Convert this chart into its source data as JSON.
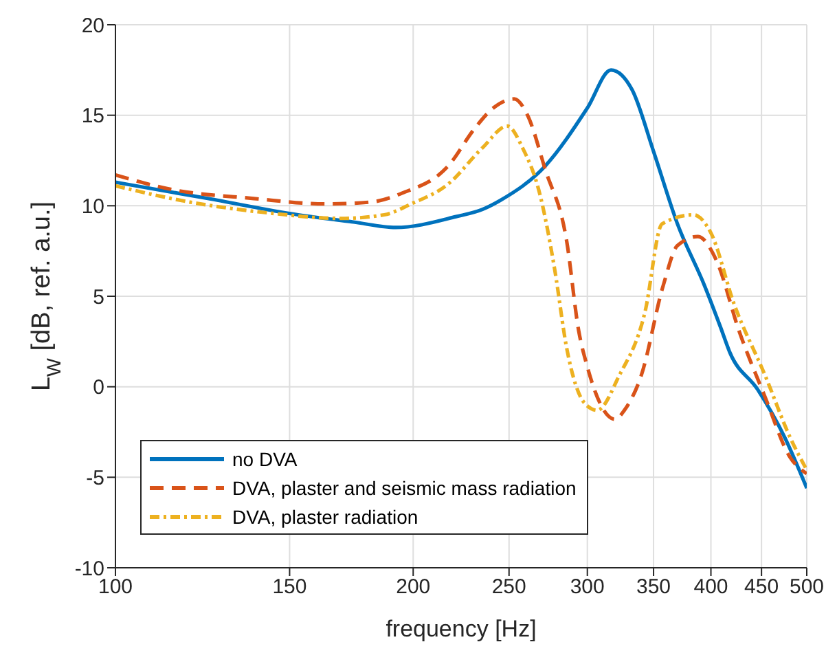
{
  "chart_data": {
    "type": "line",
    "xlabel": "frequency [Hz]",
    "ylabel": "L$_{W}$ [dB, ref. a.u.]",
    "log": "x",
    "xlim": [
      100,
      500
    ],
    "xticks": [
      100,
      150,
      200,
      250,
      300,
      350,
      400,
      450,
      500
    ],
    "ylim": [
      -10,
      20
    ],
    "yticks": [
      -10,
      -5,
      0,
      5,
      10,
      15,
      20
    ],
    "grid": true,
    "legend": "bottom left",
    "marker": "none",
    "series": [
      {
        "name": "no DVA",
        "color": "#0072bd",
        "line_style": "solid",
        "x": [
          100,
          124,
          153,
          174,
          192,
          221,
          235,
          245,
          272,
          300,
          317,
          333,
          350,
          370,
          394,
          409,
          418,
          446,
          475,
          500
        ],
        "values": [
          11.3,
          10.4,
          9.5,
          9.1,
          8.8,
          9.4,
          9.8,
          10.3,
          12.2,
          15.4,
          17.5,
          16.4,
          13.0,
          9.0,
          5.6,
          3.3,
          1.9,
          -0.15,
          -2.8,
          -5.6
        ]
      },
      {
        "name": "DVA, plaster and seismic mass radiation",
        "color": "#d95319",
        "line_style": "dashed",
        "x": [
          100,
          114,
          138,
          163,
          181,
          195,
          217,
          231,
          241,
          253,
          261,
          272,
          286,
          294,
          300,
          320,
          327,
          340,
          358,
          370,
          388,
          405,
          427,
          454,
          481,
          500
        ],
        "values": [
          11.7,
          10.9,
          10.4,
          10.1,
          10.2,
          10.7,
          12.2,
          14.3,
          15.4,
          15.9,
          15.0,
          12.0,
          8.0,
          3.1,
          1.1,
          -1.8,
          -1.3,
          0.6,
          5.6,
          7.8,
          8.3,
          7.0,
          3.1,
          -0.6,
          -3.9,
          -4.8
        ]
      },
      {
        "name": "DVA, plaster radiation",
        "color": "#edb120",
        "line_style": "dotted",
        "x": [
          100,
          119,
          143,
          169,
          187,
          199,
          217,
          235,
          249,
          258,
          269,
          278,
          286,
          298,
          307,
          323,
          343,
          357,
          384,
          400,
          422,
          454,
          481,
          500
        ],
        "values": [
          11.1,
          10.2,
          9.6,
          9.3,
          9.5,
          10.1,
          11.2,
          13.2,
          14.4,
          13.2,
          10.5,
          6.5,
          2.1,
          -0.9,
          -1.3,
          0.6,
          4.1,
          9.0,
          9.5,
          8.5,
          4.6,
          0.6,
          -2.8,
          -4.6
        ]
      }
    ]
  }
}
